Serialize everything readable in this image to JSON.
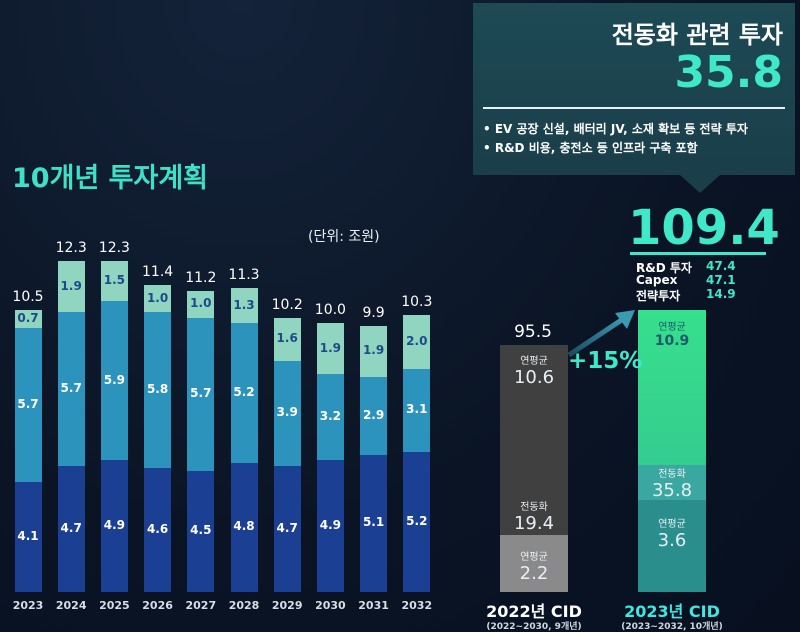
{
  "title": "10개년 투자계획",
  "unit": "(단위: 조원)",
  "colors": {
    "bottom": "#1b3f93",
    "middle": "#2c93bc",
    "top": "#8fd5c0",
    "accent": "#3fe8c8",
    "gray_dark": "#404040",
    "gray_light": "#8a8a8a",
    "green": "#36d889",
    "teal": "#2a8f8c"
  },
  "chart_data": [
    {
      "type": "bar",
      "stacked": true,
      "categories": [
        "2023",
        "2024",
        "2025",
        "2026",
        "2027",
        "2028",
        "2029",
        "2030",
        "2031",
        "2032"
      ],
      "series": [
        {
          "values": [
            4.1,
            4.7,
            4.9,
            4.6,
            4.5,
            4.8,
            4.7,
            4.9,
            5.1,
            5.2
          ]
        },
        {
          "values": [
            5.7,
            5.7,
            5.9,
            5.8,
            5.7,
            5.2,
            3.9,
            3.2,
            2.9,
            3.1
          ]
        },
        {
          "values": [
            0.7,
            1.9,
            1.5,
            1.0,
            1.0,
            1.3,
            1.6,
            1.9,
            1.9,
            2.0
          ]
        }
      ],
      "totals": [
        "10.5",
        "12.3",
        "12.3",
        "11.4",
        "11.2",
        "11.3",
        "10.2",
        "10.0",
        "9.9",
        "10.3"
      ]
    },
    {
      "type": "bar",
      "stacked": true,
      "categories": [
        "2022년 CID",
        "2023년 CID"
      ],
      "subtitles": [
        "(2022~2030, 9개년)",
        "(2023~2032, 10개년)"
      ],
      "totals": [
        "95.5",
        "109.4"
      ],
      "change": "+15%",
      "bars": [
        {
          "upper_label": "연평균",
          "upper_value": "10.6",
          "elec_label": "전동화",
          "elec_value": "19.4",
          "lower_label": "연평균",
          "lower_value": "2.2"
        },
        {
          "upper_label": "연평균",
          "upper_value": "10.9",
          "elec_label": "전동화",
          "elec_value": "35.8",
          "lower_label": "연평균",
          "lower_value": "3.6"
        }
      ],
      "breakdown": [
        {
          "label": "R&D 투자",
          "value": "47.4"
        },
        {
          "label": "Capex",
          "value": "47.1"
        },
        {
          "label": "전략투자",
          "value": "14.9"
        }
      ]
    }
  ],
  "callout": {
    "title": "전동화 관련 투자",
    "value": "35.8",
    "bullets": [
      "• EV 공장 신설, 배터리 JV, 소재 확보 등 전략 투자",
      "• R&D 비용, 충전소 등 인프라 구축 포함"
    ]
  }
}
